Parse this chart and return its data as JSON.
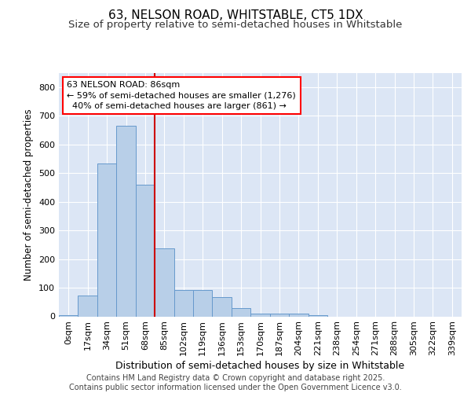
{
  "title1": "63, NELSON ROAD, WHITSTABLE, CT5 1DX",
  "title2": "Size of property relative to semi-detached houses in Whitstable",
  "xlabel": "Distribution of semi-detached houses by size in Whitstable",
  "ylabel": "Number of semi-detached properties",
  "bar_labels": [
    "0sqm",
    "17sqm",
    "34sqm",
    "51sqm",
    "68sqm",
    "85sqm",
    "102sqm",
    "119sqm",
    "136sqm",
    "153sqm",
    "170sqm",
    "187sqm",
    "204sqm",
    "221sqm",
    "238sqm",
    "254sqm",
    "271sqm",
    "288sqm",
    "305sqm",
    "322sqm",
    "339sqm"
  ],
  "bar_heights": [
    5,
    72,
    534,
    665,
    460,
    238,
    93,
    92,
    67,
    30,
    9,
    10,
    10,
    5,
    0,
    0,
    0,
    0,
    0,
    0,
    0
  ],
  "bar_color": "#b8cfe8",
  "bar_edge_color": "#6699cc",
  "vline_pos": 4.5,
  "vline_color": "#cc0000",
  "annotation_line1": "63 NELSON ROAD: 86sqm",
  "annotation_line2": "← 59% of semi-detached houses are smaller (1,276)",
  "annotation_line3": "  40% of semi-detached houses are larger (861) →",
  "ylim": [
    0,
    850
  ],
  "yticks": [
    0,
    100,
    200,
    300,
    400,
    500,
    600,
    700,
    800
  ],
  "bg_color": "#dce6f5",
  "footer": "Contains HM Land Registry data © Crown copyright and database right 2025.\nContains public sector information licensed under the Open Government Licence v3.0.",
  "title_fontsize": 11,
  "subtitle_fontsize": 9.5,
  "ylabel_fontsize": 8.5,
  "xlabel_fontsize": 9,
  "tick_fontsize": 8,
  "annot_fontsize": 8,
  "footer_fontsize": 7
}
